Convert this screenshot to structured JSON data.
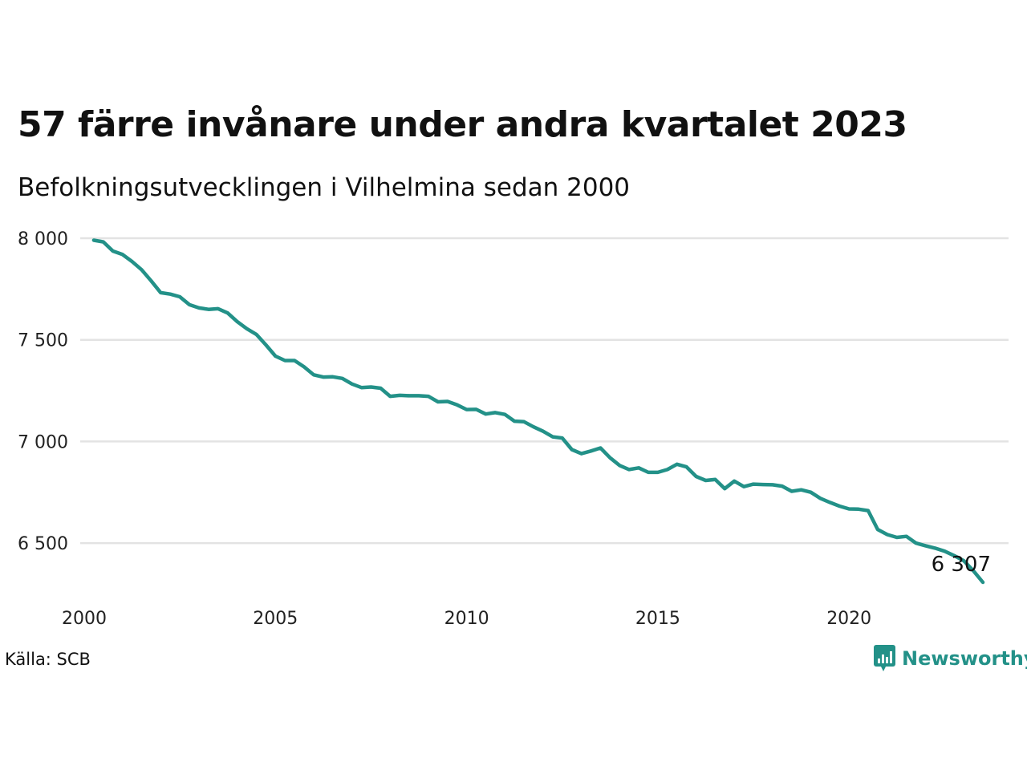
{
  "title": "57 färre invånare under andra kvartalet 2023",
  "subtitle": "Befolkningsutvecklingen i Vilhelmina sedan 2000",
  "source": "Källa: SCB",
  "brand": {
    "name": "Newsworthy",
    "icon": "newsworthy-logo-icon",
    "color": "#239188"
  },
  "chart_data": {
    "type": "line",
    "title": "57 färre invånare under andra kvartalet 2023",
    "subtitle": "Befolkningsutvecklingen i Vilhelmina sedan 2000",
    "xlabel": "",
    "ylabel": "",
    "xlim": [
      2000,
      2024
    ],
    "ylim": [
      6300,
      8000
    ],
    "x_ticks": [
      {
        "value": 2000,
        "label": "2000"
      },
      {
        "value": 2005,
        "label": "2005"
      },
      {
        "value": 2010,
        "label": "2010"
      },
      {
        "value": 2015,
        "label": "2015"
      },
      {
        "value": 2020,
        "label": "2020"
      }
    ],
    "y_ticks": [
      {
        "value": 8000,
        "label": "8 000"
      },
      {
        "value": 7500,
        "label": "7 500"
      },
      {
        "value": 7000,
        "label": "7 000"
      },
      {
        "value": 6500,
        "label": "6 500"
      }
    ],
    "grid": true,
    "line_color": "#239188",
    "end_label": "6 307",
    "series": [
      {
        "values": [
          [
            2000.25,
            7990
          ],
          [
            2000.5,
            7982
          ],
          [
            2000.75,
            7937
          ],
          [
            2001.0,
            7920
          ],
          [
            2001.25,
            7885
          ],
          [
            2001.5,
            7845
          ],
          [
            2001.75,
            7790
          ],
          [
            2002.0,
            7732
          ],
          [
            2002.25,
            7725
          ],
          [
            2002.5,
            7712
          ],
          [
            2002.75,
            7673
          ],
          [
            2003.0,
            7657
          ],
          [
            2003.25,
            7650
          ],
          [
            2003.5,
            7653
          ],
          [
            2003.75,
            7632
          ],
          [
            2004.0,
            7590
          ],
          [
            2004.25,
            7555
          ],
          [
            2004.5,
            7527
          ],
          [
            2004.75,
            7475
          ],
          [
            2005.0,
            7420
          ],
          [
            2005.25,
            7398
          ],
          [
            2005.5,
            7398
          ],
          [
            2005.75,
            7367
          ],
          [
            2006.0,
            7328
          ],
          [
            2006.25,
            7317
          ],
          [
            2006.5,
            7318
          ],
          [
            2006.75,
            7310
          ],
          [
            2007.0,
            7283
          ],
          [
            2007.25,
            7265
          ],
          [
            2007.5,
            7268
          ],
          [
            2007.75,
            7262
          ],
          [
            2008.0,
            7222
          ],
          [
            2008.25,
            7227
          ],
          [
            2008.5,
            7225
          ],
          [
            2008.75,
            7225
          ],
          [
            2009.0,
            7222
          ],
          [
            2009.25,
            7195
          ],
          [
            2009.5,
            7197
          ],
          [
            2009.75,
            7180
          ],
          [
            2010.0,
            7157
          ],
          [
            2010.25,
            7158
          ],
          [
            2010.5,
            7135
          ],
          [
            2010.75,
            7142
          ],
          [
            2011.0,
            7133
          ],
          [
            2011.25,
            7100
          ],
          [
            2011.5,
            7097
          ],
          [
            2011.75,
            7072
          ],
          [
            2012.0,
            7050
          ],
          [
            2012.25,
            7023
          ],
          [
            2012.5,
            7017
          ],
          [
            2012.75,
            6960
          ],
          [
            2013.0,
            6940
          ],
          [
            2013.25,
            6953
          ],
          [
            2013.5,
            6968
          ],
          [
            2013.75,
            6920
          ],
          [
            2014.0,
            6882
          ],
          [
            2014.25,
            6862
          ],
          [
            2014.5,
            6870
          ],
          [
            2014.75,
            6848
          ],
          [
            2015.0,
            6848
          ],
          [
            2015.25,
            6862
          ],
          [
            2015.5,
            6888
          ],
          [
            2015.75,
            6875
          ],
          [
            2016.0,
            6828
          ],
          [
            2016.25,
            6808
          ],
          [
            2016.5,
            6813
          ],
          [
            2016.75,
            6768
          ],
          [
            2017.0,
            6805
          ],
          [
            2017.25,
            6778
          ],
          [
            2017.5,
            6790
          ],
          [
            2017.75,
            6788
          ],
          [
            2018.0,
            6787
          ],
          [
            2018.25,
            6780
          ],
          [
            2018.5,
            6755
          ],
          [
            2018.75,
            6762
          ],
          [
            2019.0,
            6750
          ],
          [
            2019.25,
            6720
          ],
          [
            2019.5,
            6700
          ],
          [
            2019.75,
            6682
          ],
          [
            2020.0,
            6668
          ],
          [
            2020.25,
            6667
          ],
          [
            2020.5,
            6660
          ],
          [
            2020.75,
            6567
          ],
          [
            2021.0,
            6542
          ],
          [
            2021.25,
            6528
          ],
          [
            2021.5,
            6533
          ],
          [
            2021.75,
            6500
          ],
          [
            2022.0,
            6487
          ],
          [
            2022.25,
            6475
          ],
          [
            2022.5,
            6460
          ],
          [
            2022.75,
            6438
          ],
          [
            2023.0,
            6413
          ],
          [
            2023.25,
            6364
          ],
          [
            2023.5,
            6307
          ]
        ]
      }
    ]
  }
}
